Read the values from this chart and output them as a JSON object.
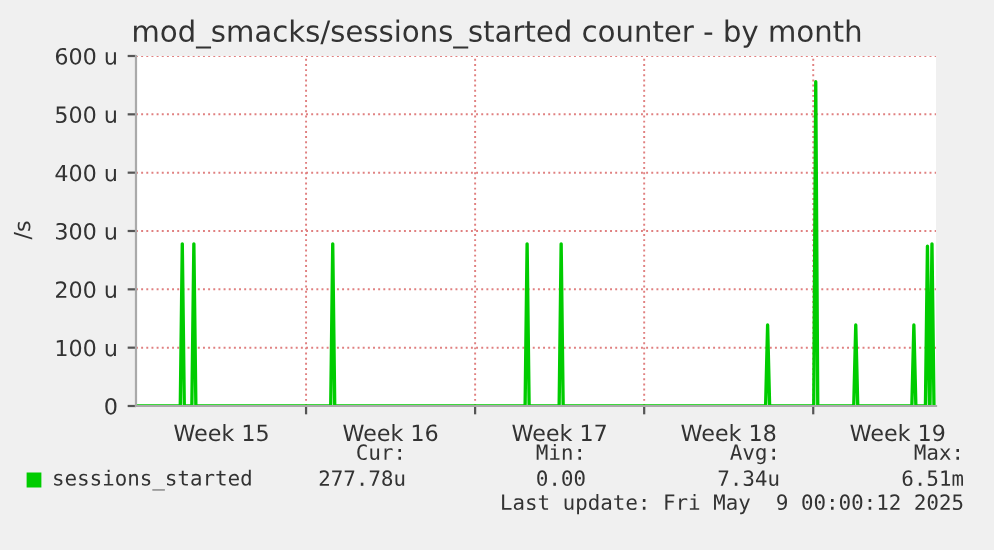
{
  "chart_data": {
    "type": "line",
    "title": "mod_smacks/sessions_started counter - by month",
    "ylabel": "/s",
    "x": [
      "2025-04-06T23:00",
      "2025-04-08T19:00",
      "2025-04-08T21:00",
      "2025-04-08T23:00",
      "2025-04-09T06:30",
      "2025-04-09T08:30",
      "2025-04-09T10:30",
      "2025-04-15T00:30",
      "2025-04-15T02:30",
      "2025-04-15T04:30",
      "2025-04-23T01:40",
      "2025-04-23T03:40",
      "2025-04-23T05:40",
      "2025-04-24T11:30",
      "2025-04-24T13:30",
      "2025-04-24T15:30",
      "2025-05-03T00:40",
      "2025-05-03T02:40",
      "2025-05-03T04:40",
      "2025-05-05T00:30",
      "2025-05-05T02:30",
      "2025-05-05T04:30",
      "2025-05-06T16:15",
      "2025-05-06T18:15",
      "2025-05-06T20:15",
      "2025-05-09T02:00",
      "2025-05-09T04:00",
      "2025-05-09T06:00",
      "2025-05-09T15:30",
      "2025-05-09T17:30",
      "2025-05-09T19:30",
      "2025-05-09T20:00",
      "2025-05-09T22:00",
      "2025-05-10T00:00"
    ],
    "series": [
      {
        "name": "sessions_started",
        "color": "#00cc00",
        "values": [
          0,
          0,
          278,
          0,
          0,
          278,
          0,
          0,
          278,
          0,
          0,
          278,
          0,
          0,
          278,
          0,
          0,
          139,
          0,
          0,
          556,
          0,
          0,
          139,
          0,
          0,
          139,
          0,
          0,
          274,
          0,
          0,
          278,
          0
        ]
      }
    ],
    "xlim": [
      "2025-04-06T23:00",
      "2025-05-10T02:00"
    ],
    "xticks": [
      {
        "value": "2025-04-10T12:00",
        "label": "Week 15"
      },
      {
        "value": "2025-04-14",
        "label": null
      },
      {
        "value": "2025-04-17T12:00",
        "label": "Week 16"
      },
      {
        "value": "2025-04-21",
        "label": null
      },
      {
        "value": "2025-04-24T12:00",
        "label": "Week 17"
      },
      {
        "value": "2025-04-28",
        "label": null
      },
      {
        "value": "2025-05-01T12:00",
        "label": "Week 18"
      },
      {
        "value": "2025-05-05",
        "label": null
      },
      {
        "value": "2025-05-08T12:00",
        "label": "Week 19"
      }
    ],
    "ylim": [
      0,
      600
    ],
    "yticks": [
      {
        "value": 0,
        "label": "0"
      },
      {
        "value": 100,
        "label": "100 u"
      },
      {
        "value": 200,
        "label": "200 u"
      },
      {
        "value": 300,
        "label": "300 u"
      },
      {
        "value": 400,
        "label": "400 u"
      },
      {
        "value": 500,
        "label": "500 u"
      },
      {
        "value": 600,
        "label": "600 u"
      }
    ],
    "grid": true,
    "legend": "bottom left",
    "marker": "none",
    "line_style": "solid",
    "annotations": [
      "Cur:",
      "Min:",
      "Avg:",
      "Max:",
      "277.78u",
      "0.00",
      "7.34u",
      "6.51m",
      "Last update: Fri May  9 00:00:12 2025"
    ]
  }
}
